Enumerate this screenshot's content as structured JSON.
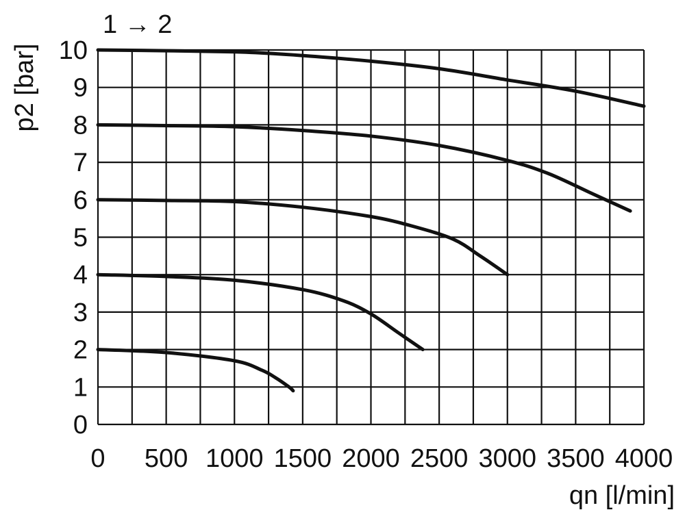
{
  "chart_data": {
    "type": "line",
    "title": "1 → 2",
    "xlabel": "qn [l/min]",
    "ylabel": "p2 [bar]",
    "xlim": [
      0,
      4000
    ],
    "ylim": [
      0,
      10
    ],
    "x_ticks": [
      0,
      500,
      1000,
      1500,
      2000,
      2500,
      3000,
      3500,
      4000
    ],
    "y_ticks": [
      0,
      1,
      2,
      3,
      4,
      5,
      6,
      7,
      8,
      9,
      10
    ],
    "x_tick_labels": [
      "0",
      "500",
      "1000",
      "1500",
      "2000",
      "2500",
      "3000",
      "3500",
      "4000"
    ],
    "y_tick_labels": [
      "0",
      "1",
      "2",
      "3",
      "4",
      "5",
      "6",
      "7",
      "8",
      "9",
      "10"
    ],
    "grid": true,
    "line_color": "#111111",
    "series": [
      {
        "x": [
          0,
          500,
          1000,
          1200,
          1500,
          2000,
          2500,
          3000,
          3500,
          4000
        ],
        "y": [
          10,
          9.98,
          9.95,
          9.92,
          9.85,
          9.7,
          9.5,
          9.2,
          8.9,
          8.5
        ]
      },
      {
        "x": [
          0,
          500,
          1000,
          1500,
          2000,
          2500,
          3000,
          3300,
          3600,
          3900
        ],
        "y": [
          8,
          7.98,
          7.95,
          7.85,
          7.7,
          7.45,
          7.05,
          6.7,
          6.2,
          5.7
        ]
      },
      {
        "x": [
          0,
          500,
          1000,
          1500,
          2000,
          2300,
          2600,
          2800,
          3000
        ],
        "y": [
          6,
          5.98,
          5.95,
          5.8,
          5.55,
          5.3,
          4.95,
          4.5,
          4
        ]
      },
      {
        "x": [
          0,
          500,
          1000,
          1500,
          1800,
          2000,
          2200,
          2380
        ],
        "y": [
          4,
          3.95,
          3.85,
          3.6,
          3.3,
          2.95,
          2.45,
          2
        ]
      },
      {
        "x": [
          0,
          500,
          1000,
          1200,
          1300,
          1400,
          1430
        ],
        "y": [
          2,
          1.92,
          1.7,
          1.45,
          1.25,
          1.0,
          0.9
        ]
      }
    ]
  }
}
